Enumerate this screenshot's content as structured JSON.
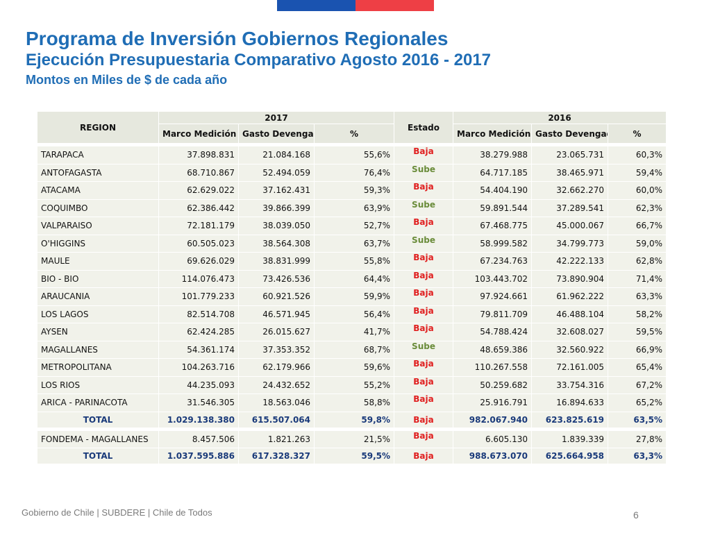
{
  "colors": {
    "title_blue": "#1f6db5",
    "flag_blue": "#1a53b0",
    "flag_red": "#ee3f45",
    "baja": "#e02020",
    "sube": "#6a8c3a",
    "total_text": "#1a3a7a"
  },
  "header": {
    "title": "Programa de Inversión Gobiernos Regionales",
    "subtitle": "Ejecución Presupuestaria Comparativo Agosto 2016 - 2017",
    "note": "Montos en Miles de $ de cada año"
  },
  "table": {
    "col_region": "REGION",
    "year_a": "2017",
    "year_b": "2016",
    "col_estado": "Estado",
    "col_marco": "Marco Medición",
    "col_gasto": "Gasto Devengado",
    "col_pct": "%",
    "rows": [
      {
        "region": "TARAPACA",
        "m17": "37.898.831",
        "g17": "21.084.168",
        "p17": "55,6%",
        "estado": "Baja",
        "m16": "38.279.988",
        "g16": "23.065.731",
        "p16": "60,3%"
      },
      {
        "region": "ANTOFAGASTA",
        "m17": "68.710.867",
        "g17": "52.494.059",
        "p17": "76,4%",
        "estado": "Sube",
        "m16": "64.717.185",
        "g16": "38.465.971",
        "p16": "59,4%"
      },
      {
        "region": "ATACAMA",
        "m17": "62.629.022",
        "g17": "37.162.431",
        "p17": "59,3%",
        "estado": "Baja",
        "m16": "54.404.190",
        "g16": "32.662.270",
        "p16": "60,0%"
      },
      {
        "region": "COQUIMBO",
        "m17": "62.386.442",
        "g17": "39.866.399",
        "p17": "63,9%",
        "estado": "Sube",
        "m16": "59.891.544",
        "g16": "37.289.541",
        "p16": "62,3%"
      },
      {
        "region": "VALPARAISO",
        "m17": "72.181.179",
        "g17": "38.039.050",
        "p17": "52,7%",
        "estado": "Baja",
        "m16": "67.468.775",
        "g16": "45.000.067",
        "p16": "66,7%"
      },
      {
        "region": "O'HIGGINS",
        "m17": "60.505.023",
        "g17": "38.564.308",
        "p17": "63,7%",
        "estado": "Sube",
        "m16": "58.999.582",
        "g16": "34.799.773",
        "p16": "59,0%"
      },
      {
        "region": "MAULE",
        "m17": "69.626.029",
        "g17": "38.831.999",
        "p17": "55,8%",
        "estado": "Baja",
        "m16": "67.234.763",
        "g16": "42.222.133",
        "p16": "62,8%"
      },
      {
        "region": "BIO - BIO",
        "m17": "114.076.473",
        "g17": "73.426.536",
        "p17": "64,4%",
        "estado": "Baja",
        "m16": "103.443.702",
        "g16": "73.890.904",
        "p16": "71,4%"
      },
      {
        "region": "ARAUCANIA",
        "m17": "101.779.233",
        "g17": "60.921.526",
        "p17": "59,9%",
        "estado": "Baja",
        "m16": "97.924.661",
        "g16": "61.962.222",
        "p16": "63,3%"
      },
      {
        "region": "LOS LAGOS",
        "m17": "82.514.708",
        "g17": "46.571.945",
        "p17": "56,4%",
        "estado": "Baja",
        "m16": "79.811.709",
        "g16": "46.488.104",
        "p16": "58,2%"
      },
      {
        "region": "AYSEN",
        "m17": "62.424.285",
        "g17": "26.015.627",
        "p17": "41,7%",
        "estado": "Baja",
        "m16": "54.788.424",
        "g16": "32.608.027",
        "p16": "59,5%"
      },
      {
        "region": "MAGALLANES",
        "m17": "54.361.174",
        "g17": "37.353.352",
        "p17": "68,7%",
        "estado": "Sube",
        "m16": "48.659.386",
        "g16": "32.560.922",
        "p16": "66,9%"
      },
      {
        "region": "METROPOLITANA",
        "m17": "104.263.716",
        "g17": "62.179.966",
        "p17": "59,6%",
        "estado": "Baja",
        "m16": "110.267.558",
        "g16": "72.161.005",
        "p16": "65,4%"
      },
      {
        "region": "LOS RIOS",
        "m17": "44.235.093",
        "g17": "24.432.652",
        "p17": "55,2%",
        "estado": "Baja",
        "m16": "50.259.682",
        "g16": "33.754.316",
        "p16": "67,2%"
      },
      {
        "region": "ARICA - PARINACOTA",
        "m17": "31.546.305",
        "g17": "18.563.046",
        "p17": "58,8%",
        "estado": "Baja",
        "m16": "25.916.791",
        "g16": "16.894.633",
        "p16": "65,2%"
      }
    ],
    "total1": {
      "region": "TOTAL",
      "m17": "1.029.138.380",
      "g17": "615.507.064",
      "p17": "59,8%",
      "estado": "Baja",
      "m16": "982.067.940",
      "g16": "623.825.619",
      "p16": "63,5%"
    },
    "fondema": {
      "region": "FONDEMA  - MAGALLANES",
      "m17": "8.457.506",
      "g17": "1.821.263",
      "p17": "21,5%",
      "estado": "Baja",
      "m16": "6.605.130",
      "g16": "1.839.339",
      "p16": "27,8%"
    },
    "total2": {
      "region": "TOTAL",
      "m17": "1.037.595.886",
      "g17": "617.328.327",
      "p17": "59,5%",
      "estado": "Baja",
      "m16": "988.673.070",
      "g16": "625.664.958",
      "p16": "63,3%"
    }
  },
  "footer": {
    "text": "Gobierno de Chile | SUBDERE | Chile de Todos",
    "page": "6"
  }
}
